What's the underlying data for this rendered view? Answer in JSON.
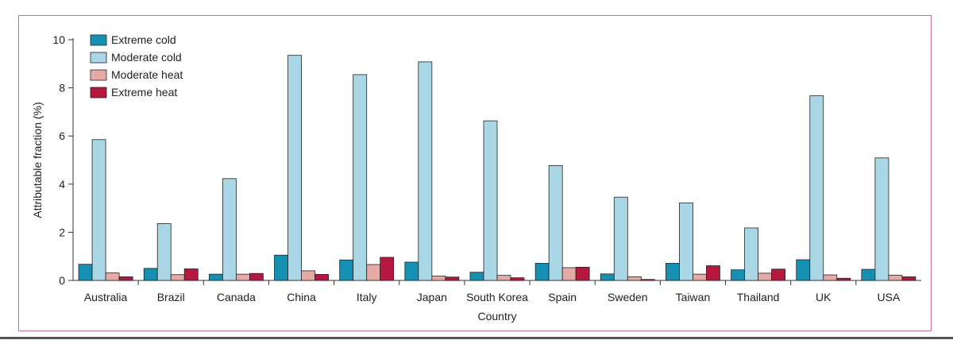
{
  "chart_data": {
    "type": "bar",
    "title": "",
    "xlabel": "Country",
    "ylabel": "Attributable fraction (%)",
    "ylim": [
      0,
      10
    ],
    "yticks": [
      0,
      2,
      4,
      6,
      8,
      10
    ],
    "grid": false,
    "legend_position": "top-left",
    "categories": [
      "Australia",
      "Brazil",
      "Canada",
      "China",
      "Italy",
      "Japan",
      "South Korea",
      "Spain",
      "Sweden",
      "Taiwan",
      "Thailand",
      "UK",
      "USA"
    ],
    "series": [
      {
        "name": "Extreme cold",
        "color": "#1590b3",
        "values": [
          0.67,
          0.5,
          0.26,
          1.05,
          0.85,
          0.76,
          0.34,
          0.71,
          0.27,
          0.71,
          0.44,
          0.86,
          0.46
        ]
      },
      {
        "name": "Moderate cold",
        "color": "#a9d7e6",
        "values": [
          5.85,
          2.36,
          4.23,
          9.35,
          8.55,
          9.08,
          6.63,
          4.77,
          3.46,
          3.22,
          2.18,
          7.67,
          5.09
        ]
      },
      {
        "name": "Moderate heat",
        "color": "#e6aaa6",
        "values": [
          0.31,
          0.24,
          0.26,
          0.4,
          0.66,
          0.18,
          0.21,
          0.53,
          0.15,
          0.26,
          0.3,
          0.23,
          0.22
        ]
      },
      {
        "name": "Extreme heat",
        "color": "#b5173e",
        "values": [
          0.15,
          0.48,
          0.29,
          0.25,
          0.96,
          0.14,
          0.11,
          0.55,
          0.04,
          0.61,
          0.47,
          0.09,
          0.15
        ]
      }
    ]
  }
}
